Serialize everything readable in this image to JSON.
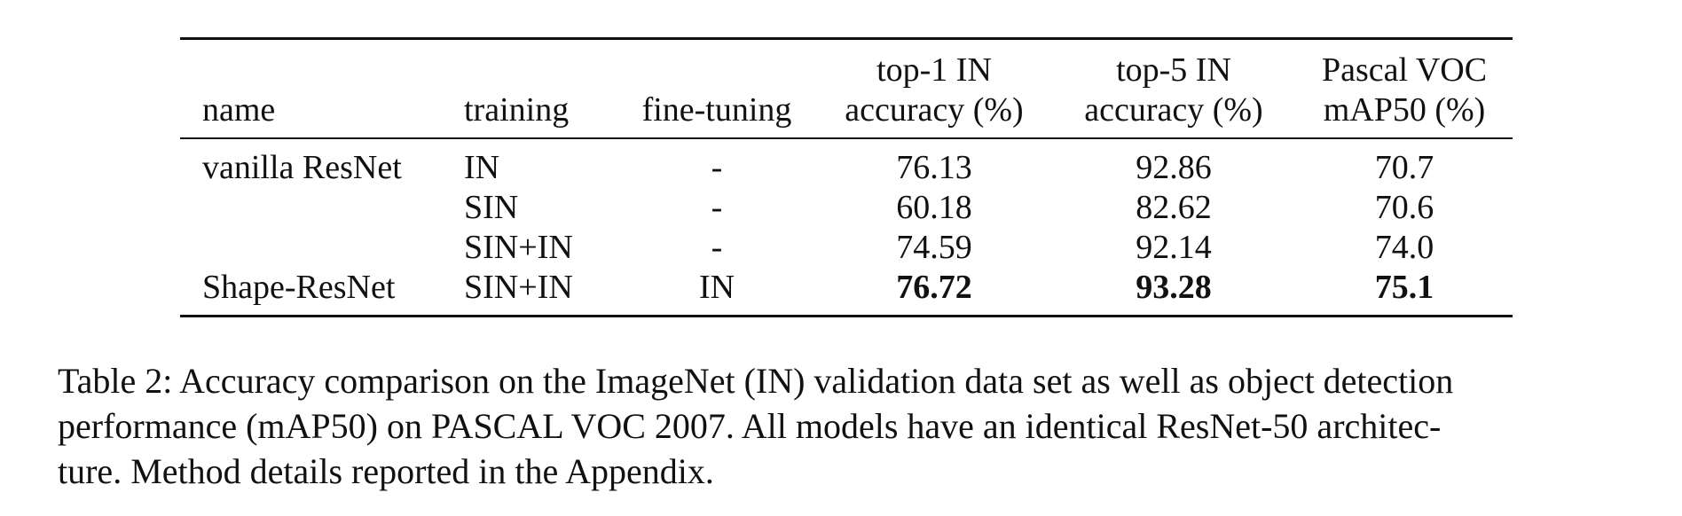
{
  "table": {
    "headers": {
      "name": "name",
      "training": "training",
      "fine_tuning": "fine-tuning",
      "top1_line1": "top-1 IN",
      "top1_line2": "accuracy (%)",
      "top5_line1": "top-5 IN",
      "top5_line2": "accuracy (%)",
      "voc_line1": "Pascal VOC",
      "voc_line2": "mAP50 (%)"
    },
    "rows": [
      {
        "name": "vanilla ResNet",
        "training": "IN",
        "fine_tuning": "-",
        "top1": "76.13",
        "top5": "92.86",
        "voc": "70.7",
        "bold": false
      },
      {
        "name": "",
        "training": "SIN",
        "fine_tuning": "-",
        "top1": "60.18",
        "top5": "82.62",
        "voc": "70.6",
        "bold": false
      },
      {
        "name": "",
        "training": "SIN+IN",
        "fine_tuning": "-",
        "top1": "74.59",
        "top5": "92.14",
        "voc": "74.0",
        "bold": false
      },
      {
        "name": "Shape-ResNet",
        "training": "SIN+IN",
        "fine_tuning": "IN",
        "top1": "76.72",
        "top5": "93.28",
        "voc": "75.1",
        "bold": true
      }
    ]
  },
  "caption": {
    "line1": "Table 2: Accuracy comparison on the ImageNet (IN) validation data set as well as object detection",
    "line2": "performance (mAP50) on PASCAL VOC 2007.  All models have an identical ResNet-50 architec-",
    "line3": "ture. Method details reported in the Appendix."
  }
}
